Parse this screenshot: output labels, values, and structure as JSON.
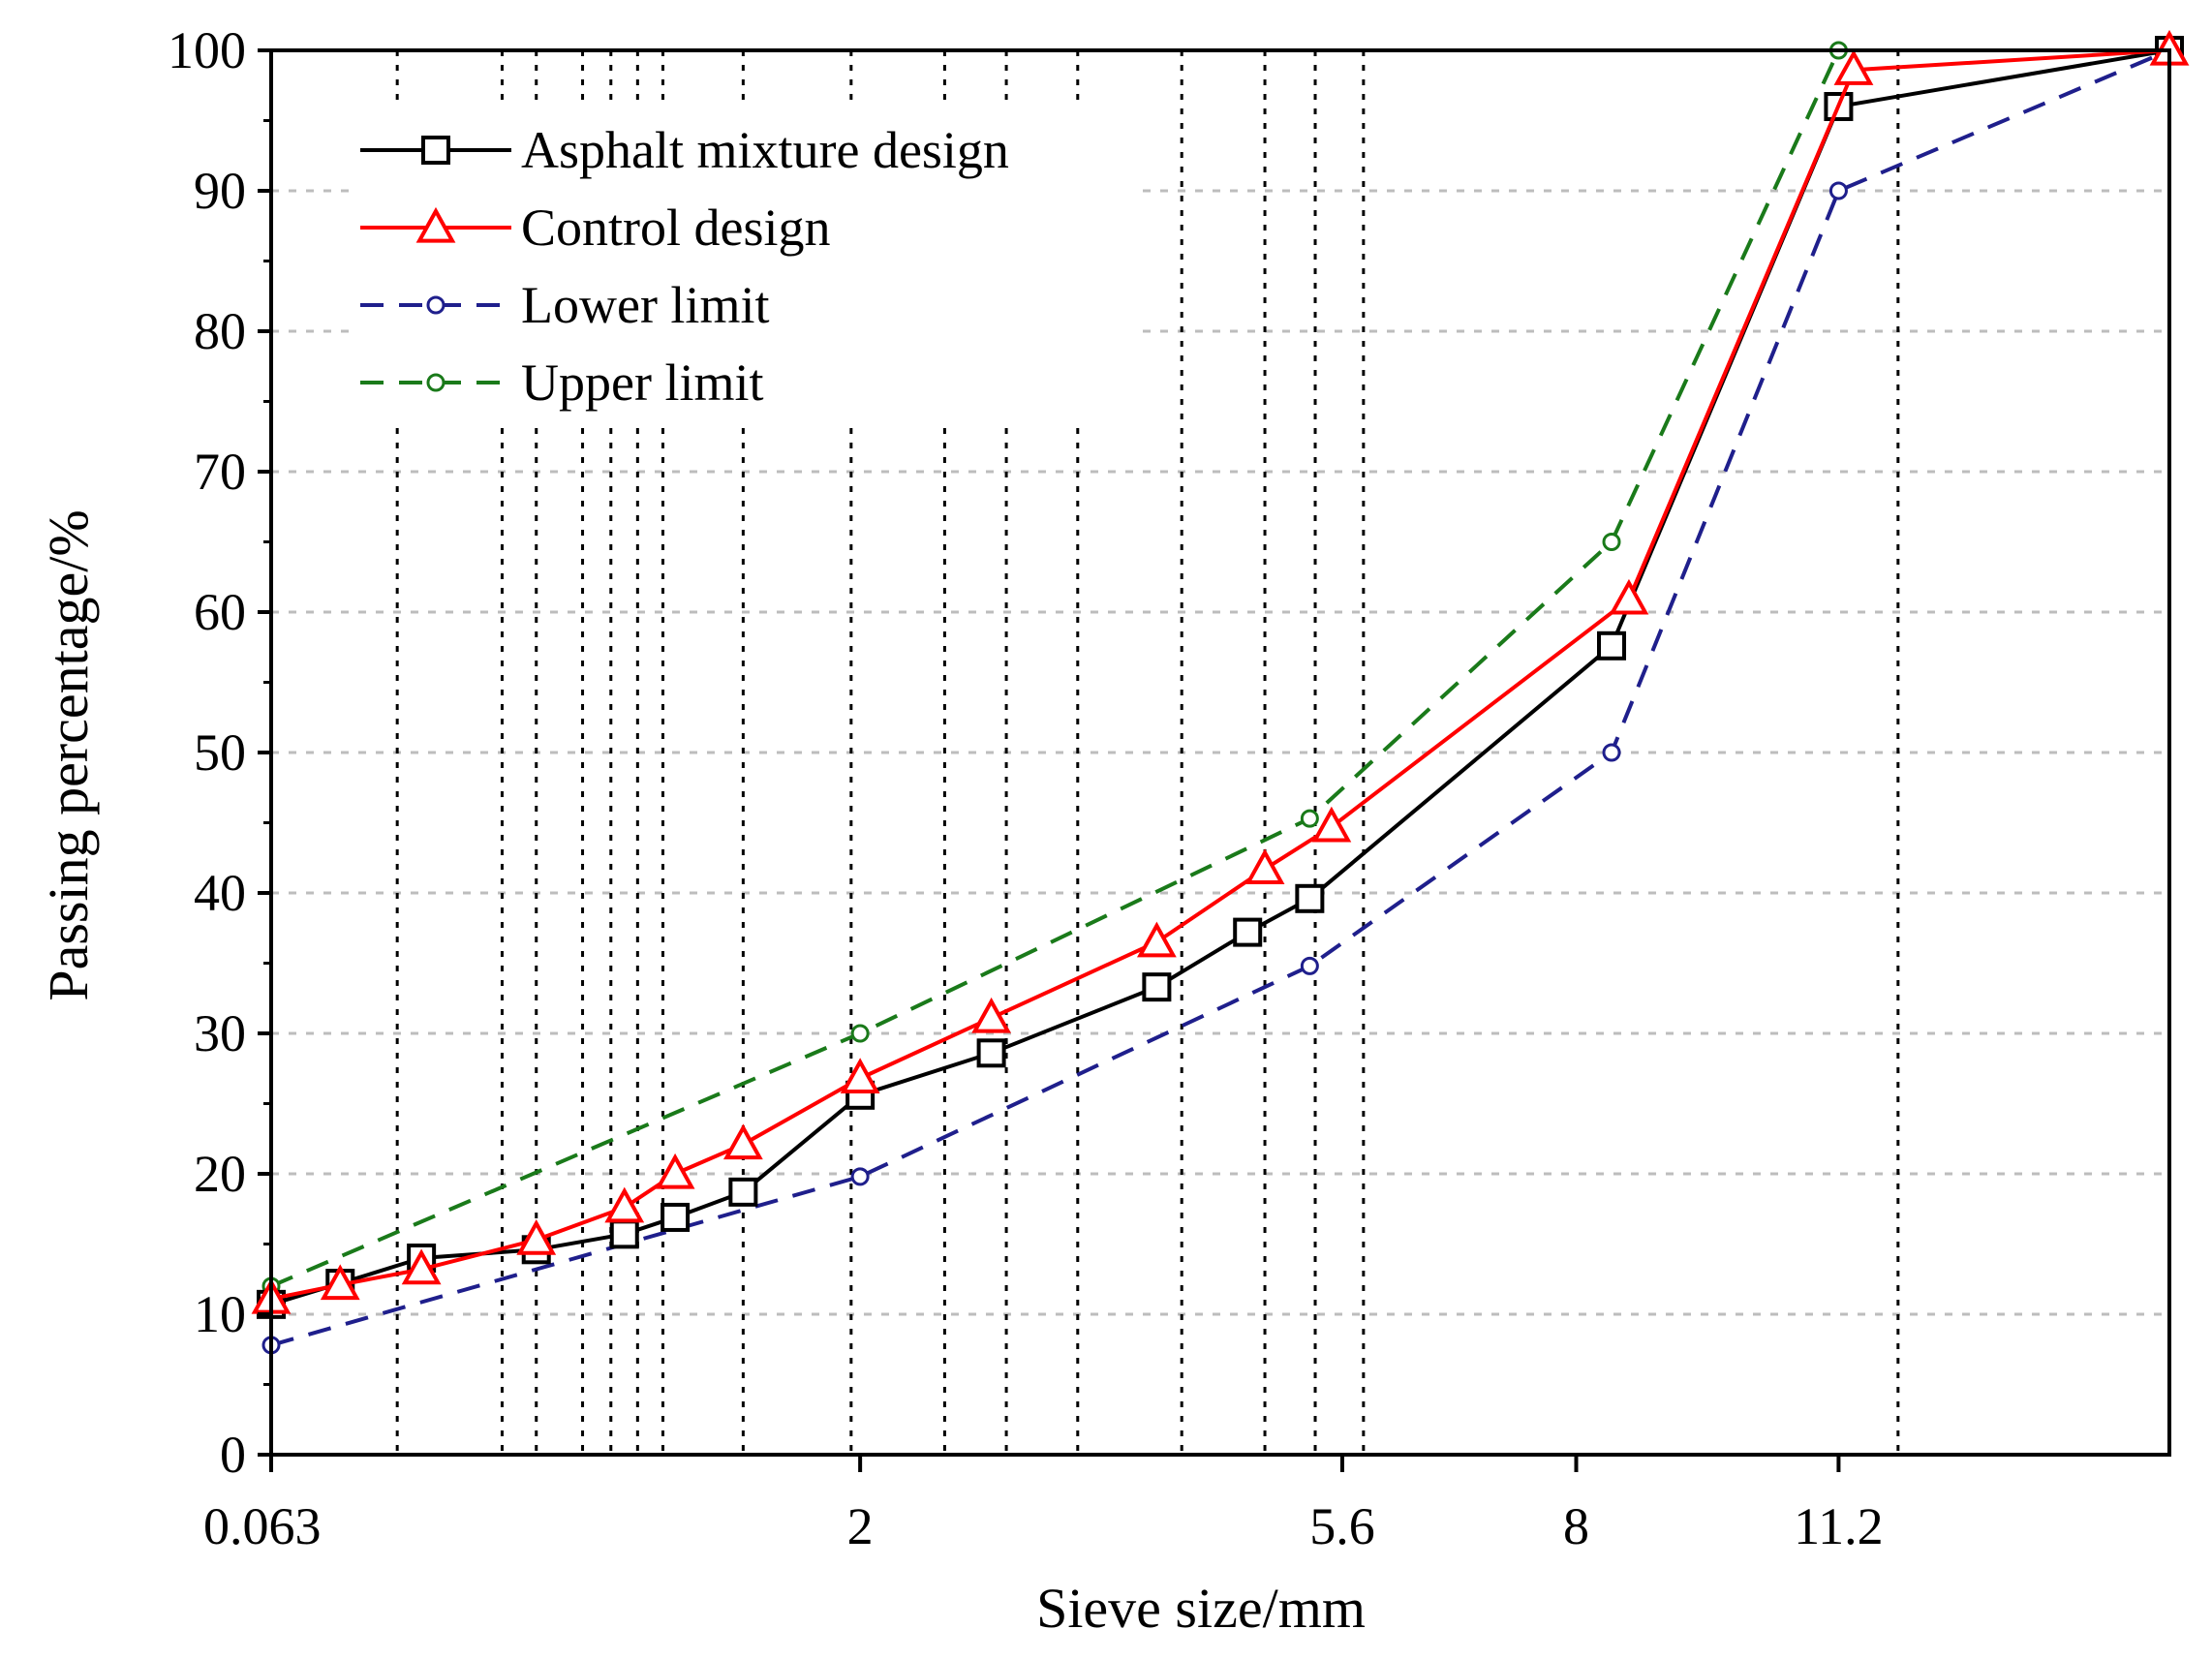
{
  "chart_data": {
    "type": "line",
    "title": "",
    "xlabel": "Sieve size/mm",
    "ylabel": "Passing percentage/%",
    "x_scale": "sqrt",
    "xlim": [
      0.063,
      16
    ],
    "ylim": [
      0,
      100
    ],
    "grid": true,
    "legend_position": "top-left",
    "x_tick_labels": [
      {
        "value": 0.063,
        "label": "0.063"
      },
      {
        "value": 2,
        "label": "2"
      },
      {
        "value": 5.6,
        "label": "5.6"
      },
      {
        "value": 8,
        "label": "8"
      },
      {
        "value": 11.2,
        "label": "11.2"
      }
    ],
    "y_ticks": [
      0,
      10,
      20,
      30,
      40,
      50,
      60,
      70,
      80,
      90,
      100
    ],
    "y_tick_labels": [
      "0",
      "10",
      "20",
      "30",
      "40",
      "50",
      "60",
      "70",
      "80",
      "90",
      "100"
    ],
    "vertical_reference_sieves": [
      0.25,
      0.5,
      0.6,
      0.75,
      0.85,
      0.95,
      1.05,
      1.4,
      1.95,
      2.5,
      2.9,
      3.4,
      4.2,
      4.9,
      5.35,
      5.8,
      12.0
    ],
    "series": [
      {
        "name": "Asphalt mixture design",
        "color": "#000000",
        "dash": "solid",
        "marker": "square",
        "x": [
          0.063,
          0.15,
          0.3,
          0.6,
          0.9,
          1.1,
          1.4,
          2,
          2.8,
          4,
          4.75,
          5.3,
          8.4,
          11.2,
          16
        ],
        "y": [
          10.7,
          12.2,
          14.0,
          14.6,
          15.7,
          16.9,
          18.7,
          25.6,
          28.6,
          33.3,
          37.2,
          39.6,
          57.6,
          96.0,
          100.0
        ]
      },
      {
        "name": "Control design",
        "color": "#ff0000",
        "dash": "solid",
        "marker": "triangle",
        "x": [
          0.063,
          0.15,
          0.3,
          0.6,
          0.9,
          1.1,
          1.4,
          2,
          2.8,
          4,
          4.9,
          5.5,
          8.6,
          11.4,
          16
        ],
        "y": [
          11.1,
          12.1,
          13.2,
          15.3,
          17.6,
          20.0,
          22.1,
          26.8,
          31.1,
          36.5,
          41.7,
          44.7,
          60.9,
          98.6,
          100.0
        ]
      },
      {
        "name": "Lower limit",
        "color": "#1f1f8c",
        "dash": "dashed",
        "marker": "circle",
        "x": [
          0.063,
          2,
          5.3,
          8.4,
          11.2,
          16
        ],
        "y": [
          7.8,
          19.8,
          34.8,
          50.0,
          90.0,
          100.0
        ]
      },
      {
        "name": "Upper limit",
        "color": "#1a7a1a",
        "dash": "dashed",
        "marker": "circle",
        "x": [
          0.063,
          2,
          5.3,
          8.4,
          11.2,
          16
        ],
        "y": [
          12.0,
          30.0,
          45.3,
          65.0,
          100.0,
          100.0
        ]
      }
    ]
  }
}
